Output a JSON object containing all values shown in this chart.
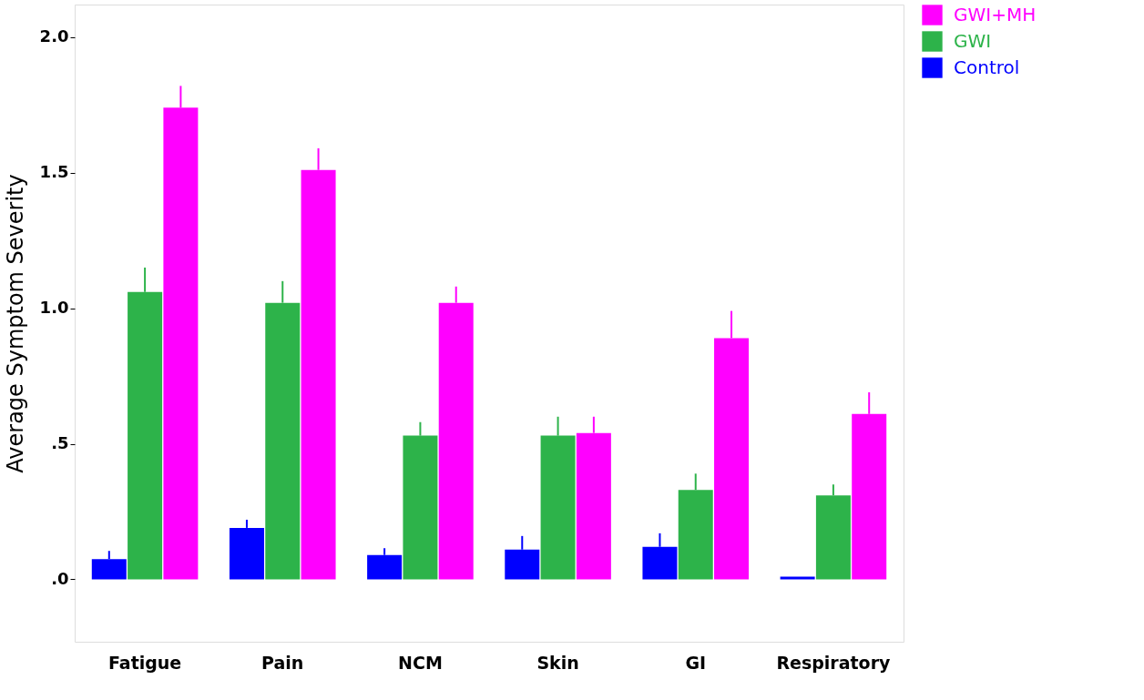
{
  "chart_data": {
    "type": "bar",
    "ylabel": "Average Symptom Severity",
    "categories": [
      "Fatigue",
      "Pain",
      "NCM",
      "Skin",
      "GI",
      "Respiratory"
    ],
    "series": [
      {
        "name": "Control",
        "color": "#0000ff",
        "values": [
          0.075,
          0.19,
          0.09,
          0.11,
          0.12,
          0.01
        ],
        "errors": [
          [
            0.075,
            0.105
          ],
          [
            0.19,
            0.22
          ],
          [
            0.09,
            0.115
          ],
          [
            0.11,
            0.16
          ],
          [
            0.12,
            0.17
          ],
          null
        ]
      },
      {
        "name": "GWI",
        "color": "#2db34a",
        "values": [
          1.06,
          1.02,
          0.53,
          0.53,
          0.33,
          0.31
        ],
        "errors": [
          [
            1.06,
            1.15
          ],
          [
            1.02,
            1.1
          ],
          [
            0.53,
            0.58
          ],
          [
            0.53,
            0.6
          ],
          [
            0.33,
            0.39
          ],
          [
            0.31,
            0.35
          ]
        ]
      },
      {
        "name": "GWI+MH",
        "color": "#ff00ff",
        "values": [
          1.74,
          1.51,
          1.02,
          0.54,
          0.89,
          0.61
        ],
        "errors": [
          [
            1.74,
            1.82
          ],
          [
            1.51,
            1.59
          ],
          [
            1.02,
            1.08
          ],
          [
            0.54,
            0.6
          ],
          [
            0.89,
            0.99
          ],
          [
            0.61,
            0.69
          ]
        ]
      }
    ],
    "ylim": [
      -0.23,
      2.12
    ],
    "yticks": [
      {
        "value": 0,
        "label": ".0"
      },
      {
        "value": 0.5,
        "label": ".5"
      },
      {
        "value": 1,
        "label": "1.0"
      },
      {
        "value": 1.5,
        "label": "1.5"
      },
      {
        "value": 2,
        "label": "2.0"
      }
    ],
    "grid": false,
    "legend": "top right"
  }
}
